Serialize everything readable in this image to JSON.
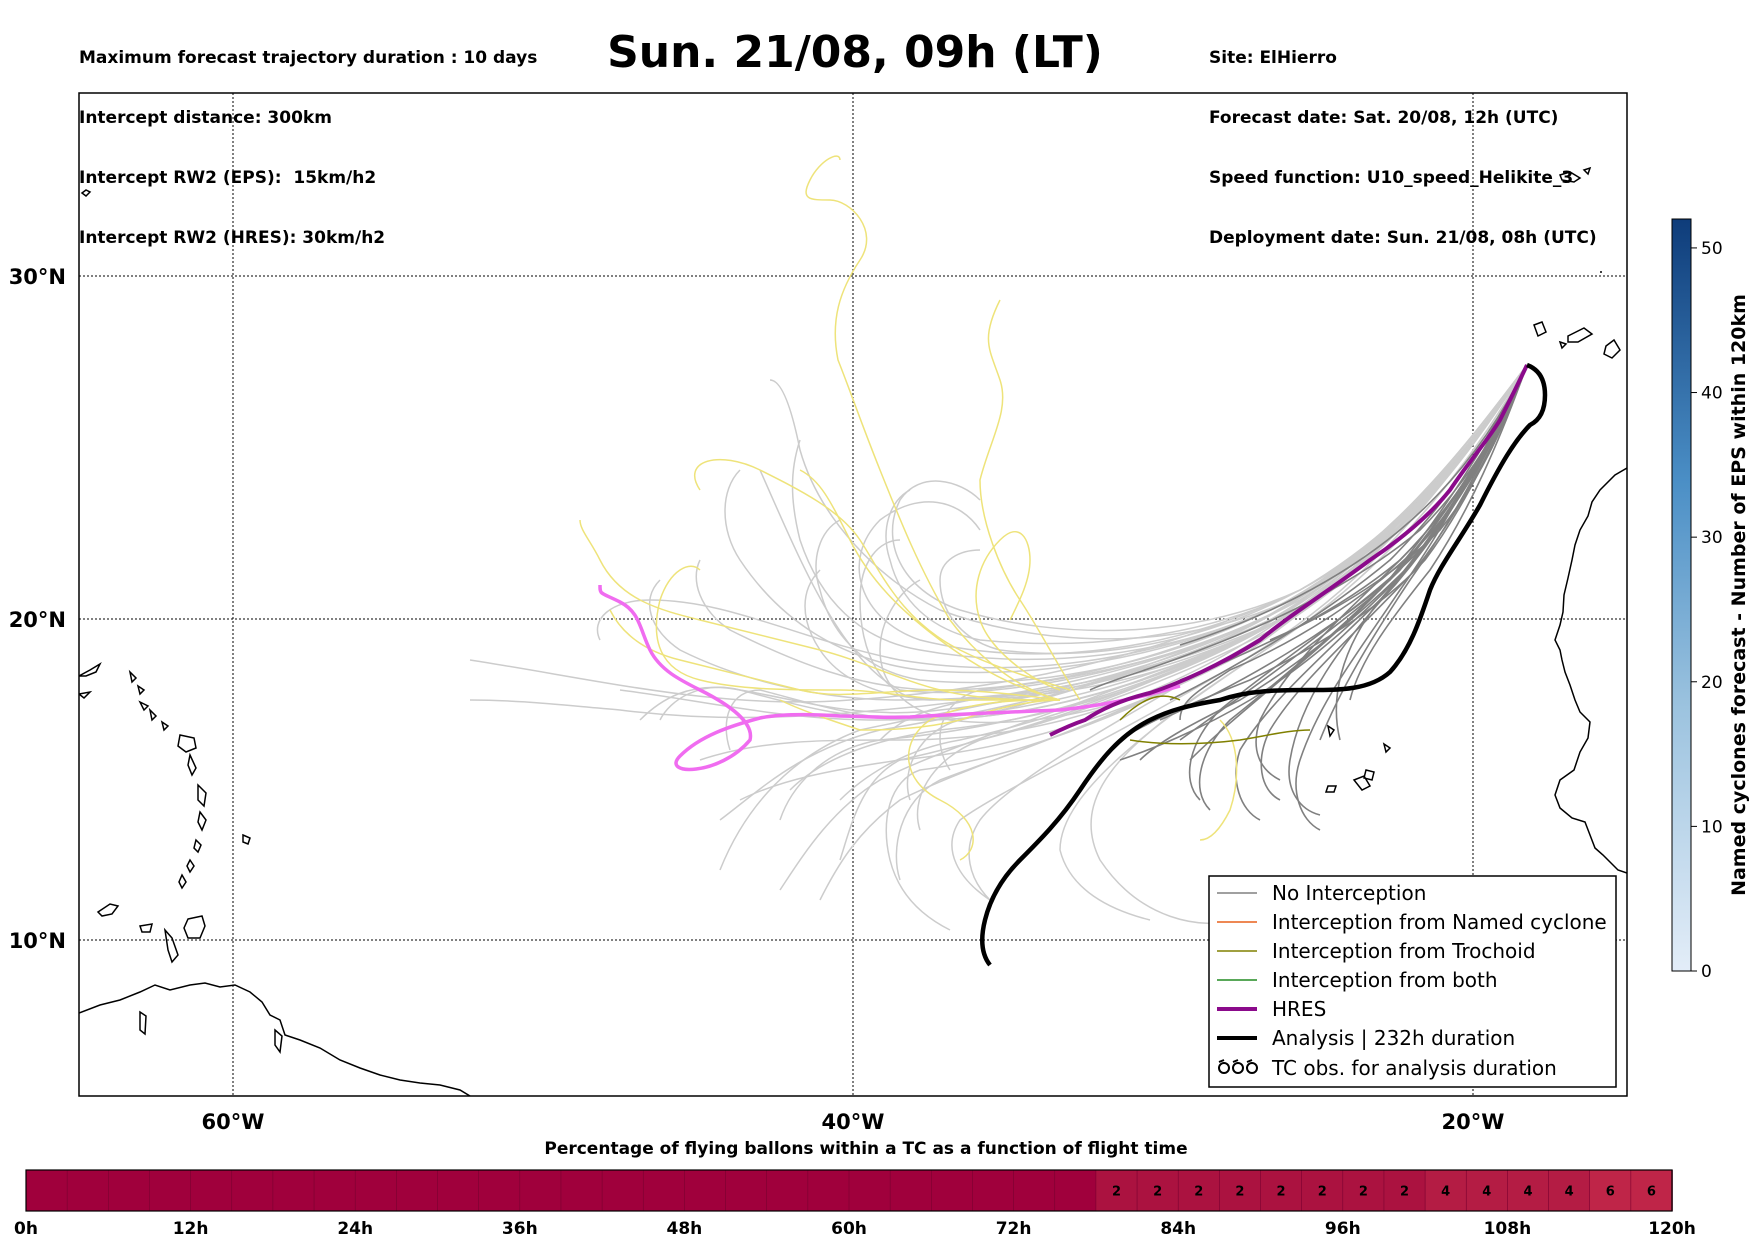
{
  "header": {
    "left_lines": [
      "Maximum forecast trajectory duration : 10 days",
      "Intercept distance: 300km",
      "Intercept RW2 (EPS):  15km/h2",
      "Intercept RW2 (HRES): 30km/h2"
    ],
    "right_lines": [
      "Site: ElHierro",
      "Forecast date: Sat. 20/08, 12h (UTC)",
      "Speed function: U10_speed_Helikite_3",
      "Deployment date: Sun. 21/08, 08h (UTC)"
    ],
    "title": "Sun. 21/08, 09h (LT)"
  },
  "map": {
    "lat_labels": [
      {
        "lat": 30,
        "label": "30°N"
      },
      {
        "lat": 20,
        "label": "20°N"
      },
      {
        "lat": 10,
        "label": "10°N"
      }
    ],
    "lon_labels": [
      {
        "lon": -60,
        "label": "60°W"
      },
      {
        "lon": -40,
        "label": "40°W"
      },
      {
        "lon": -20,
        "label": "20°W"
      }
    ],
    "site_name": "ElHierro",
    "colors": {
      "eps": "#cccccc",
      "eps_no_interception": "#808080",
      "yellow": "#eee37a",
      "hres": "#8b0a8b",
      "hres_pink": "#f06cf0",
      "analysis": "#000000"
    }
  },
  "colorbar": {
    "title": "Named cyclones forecast - Number of EPS within 120km",
    "ticks": [
      "0",
      "10",
      "20",
      "30",
      "40",
      "50"
    ],
    "min": 0,
    "max": 52,
    "color_low": "#e3edf8",
    "color_high": "#0e3c7a"
  },
  "legend": {
    "items": [
      {
        "label": "No Interception",
        "color": "#808080",
        "symbol": "line-thin"
      },
      {
        "label": "Interception from Named cyclone",
        "color": "#e8601c",
        "symbol": "line-thin"
      },
      {
        "label": "Interception from Trochoid",
        "color": "#808000",
        "symbol": "line-thin"
      },
      {
        "label": "Interception from both",
        "color": "#228b22",
        "symbol": "line-thin"
      },
      {
        "label": "HRES",
        "color": "#8b0a8b",
        "symbol": "line-thick"
      },
      {
        "label": "Analysis | 232h duration",
        "color": "#000000",
        "symbol": "line-thick"
      },
      {
        "label": "TC obs. for analysis duration",
        "color": "#000000",
        "symbol": "tc-icon"
      }
    ]
  },
  "strip": {
    "title": "Percentage of flying ballons within a TC as a function of flight time",
    "tick_labels": [
      "0h",
      "12h",
      "24h",
      "36h",
      "48h",
      "60h",
      "72h",
      "84h",
      "96h",
      "108h",
      "120h"
    ],
    "cell_values": [
      "0",
      "0",
      "0",
      "0",
      "0",
      "0",
      "0",
      "0",
      "0",
      "0",
      "0",
      "0",
      "0",
      "0",
      "0",
      "0",
      "0",
      "0",
      "0",
      "0",
      "0",
      "0",
      "0",
      "0",
      "0",
      "0",
      "2",
      "2",
      "2",
      "2",
      "2",
      "2",
      "2",
      "2",
      "4",
      "4",
      "4",
      "4",
      "6",
      "6"
    ],
    "color_zero": "#a0003c",
    "color_low": "#ab1240",
    "color_mid": "#b41c44",
    "color_high": "#bf2548"
  }
}
